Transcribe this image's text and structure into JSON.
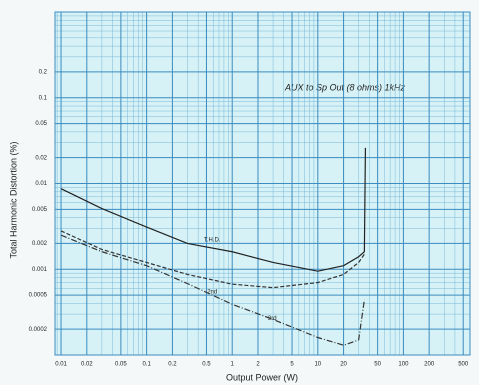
{
  "chart_data": {
    "type": "line",
    "annotation": "AUX to Sp Out (8 ohms) 1kHz",
    "xlabel": "Output Power (W)",
    "ylabel": "Total Harmonic Distortion (%)",
    "x": [
      0.01,
      0.03,
      0.1,
      0.3,
      1,
      3,
      10,
      20,
      30,
      35,
      36
    ],
    "series": [
      {
        "name": "T.H.D.",
        "color": "#222222",
        "values": [
          0.0087,
          0.0051,
          0.0031,
          0.002,
          0.0016,
          0.0012,
          0.00095,
          0.0011,
          0.0014,
          0.0016,
          0.026
        ]
      },
      {
        "name": "2nd",
        "color": "#333333",
        "values": [
          0.0028,
          0.0017,
          0.0012,
          0.00087,
          0.00067,
          0.00061,
          0.0007,
          0.00087,
          0.0012,
          0.0015,
          null
        ]
      },
      {
        "name": "3rd",
        "color": "#333333",
        "values": [
          0.0025,
          0.0016,
          0.0011,
          0.00068,
          0.00039,
          0.00026,
          0.00016,
          0.00013,
          0.00015,
          0.00044,
          null
        ]
      }
    ],
    "xscale": "log",
    "yscale": "log",
    "xlim": [
      0.0085,
      600
    ],
    "ylim": [
      0.0001,
      1
    ],
    "xticks": [
      0.01,
      0.02,
      0.05,
      0.1,
      0.2,
      0.5,
      1,
      2,
      5,
      10,
      20,
      50,
      100,
      200,
      500
    ],
    "yticks": [
      0.0002,
      0.0005,
      0.001,
      0.002,
      0.005,
      0.01,
      0.02,
      0.05,
      0.1,
      0.2
    ],
    "grid": true
  }
}
